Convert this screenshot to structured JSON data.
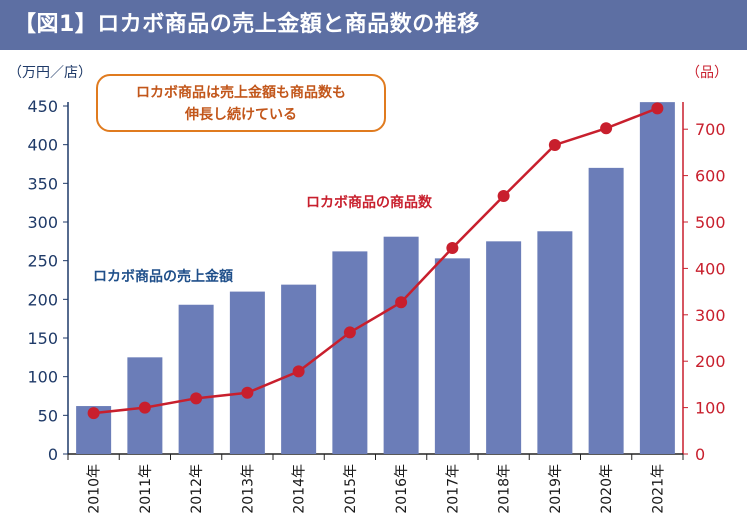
{
  "header": {
    "title": "【図1】ロカボ商品の売上金額と商品数の推移"
  },
  "annotation": {
    "line1": "ロカボ商品は売上金額も商品数も",
    "line2": "伸長し続けている"
  },
  "colors": {
    "bar": "#6b7db8",
    "line": "#c81f2d",
    "header": "#5d6fa3",
    "callout_border": "#e07b1f"
  },
  "chart_data": {
    "type": "bar+line",
    "title": "ロカボ商品の売上金額と商品数の推移",
    "categories": [
      "2010年",
      "2011年",
      "2012年",
      "2013年",
      "2014年",
      "2015年",
      "2016年",
      "2017年",
      "2018年",
      "2019年",
      "2020年",
      "2021年"
    ],
    "series": [
      {
        "name": "ロカボ商品の売上金額",
        "type": "bar",
        "axis": "left",
        "values": [
          62,
          125,
          193,
          210,
          219,
          262,
          281,
          253,
          275,
          288,
          370,
          455
        ]
      },
      {
        "name": "ロカボ商品の商品数",
        "type": "line",
        "axis": "right",
        "values": [
          88,
          100,
          120,
          132,
          178,
          262,
          327,
          444,
          556,
          666,
          702,
          745
        ]
      }
    ],
    "y_left": {
      "label": "（万円／店）",
      "ylim": [
        0,
        450
      ],
      "ticks": [
        0,
        50,
        100,
        150,
        200,
        250,
        300,
        350,
        400,
        450
      ]
    },
    "y_right": {
      "label": "（品）",
      "ylim": [
        0,
        750
      ],
      "ticks": [
        0,
        100,
        200,
        300,
        400,
        500,
        600,
        700
      ]
    }
  }
}
